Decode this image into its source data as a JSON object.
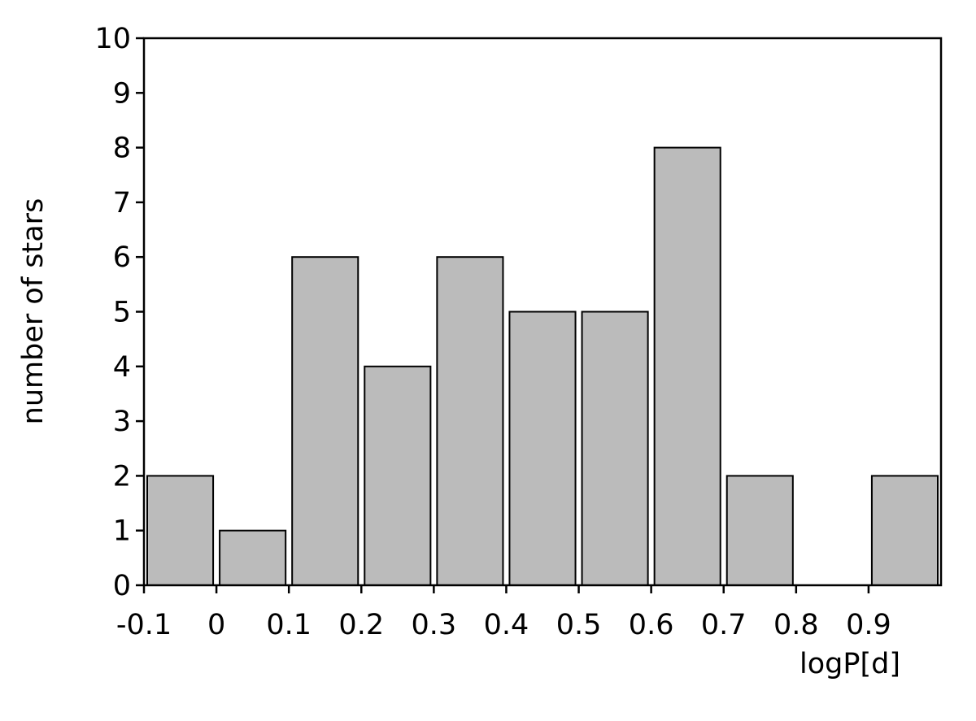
{
  "chart_data": {
    "type": "histogram",
    "xlabel": "logP[d]",
    "ylabel": "number of stars",
    "bins": [
      -0.1,
      0,
      0.1,
      0.2,
      0.3,
      0.4,
      0.5,
      0.6,
      0.7,
      0.8,
      0.9,
      1.0
    ],
    "values": [
      2,
      1,
      6,
      4,
      6,
      5,
      5,
      8,
      2,
      0,
      2
    ],
    "color": "#bbbbbb",
    "xlim": [
      -0.1,
      1.0
    ],
    "xticks": [
      -0.1,
      0,
      0.1,
      0.2,
      0.3,
      0.4,
      0.5,
      0.6,
      0.7,
      0.8,
      0.9
    ],
    "ylim": [
      0,
      10
    ],
    "yticks": [
      0,
      1,
      2,
      3,
      4,
      5,
      6,
      7,
      8,
      9,
      10
    ]
  }
}
